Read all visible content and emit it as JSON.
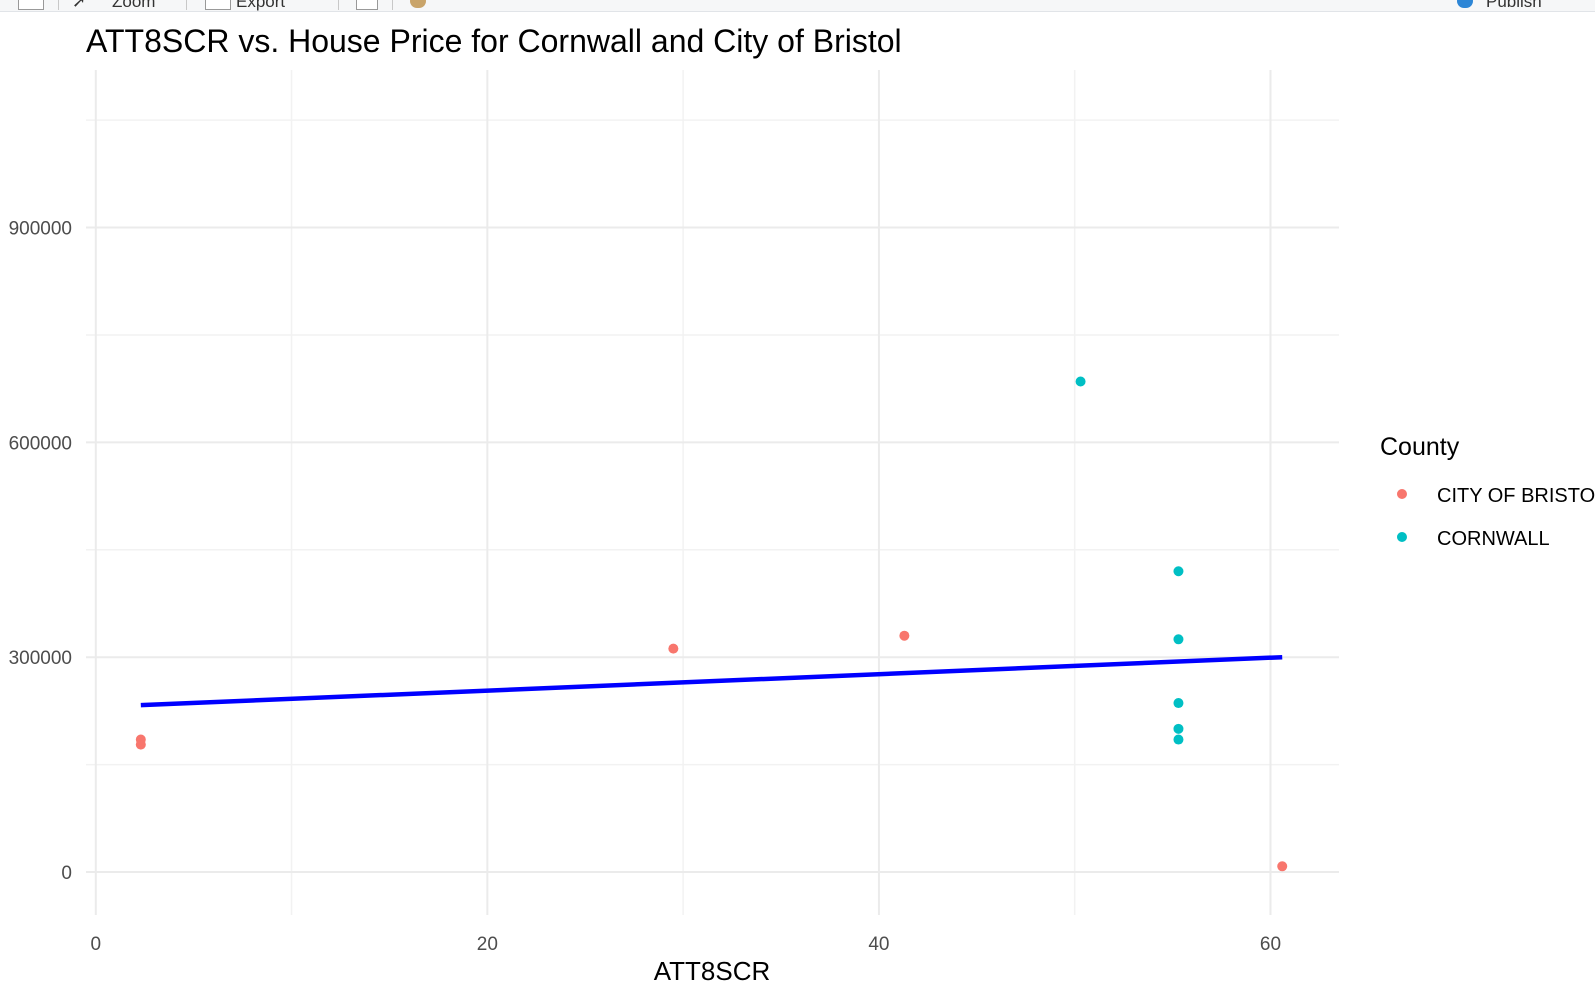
{
  "toolbar": {
    "zoom_label": "Zoom",
    "export_label": "Export",
    "publish_label": "Publish"
  },
  "chart_data": {
    "type": "scatter",
    "title": "ATT8SCR vs. House Price for Cornwall and City of Bristol",
    "xlabel": "ATT8SCR",
    "ylabel": "",
    "xlim": [
      -0.5,
      63.5
    ],
    "ylim": [
      -60000,
      1120000
    ],
    "xticks": [
      0,
      20,
      40,
      60
    ],
    "xtick_labels": [
      "0",
      "20",
      "40",
      "60"
    ],
    "yticks": [
      0,
      300000,
      600000,
      900000
    ],
    "ytick_labels": [
      "0",
      "300000",
      "600000",
      "900000"
    ],
    "grid": true,
    "legend": {
      "title": "County",
      "placement": "right",
      "entries": [
        {
          "label": "CITY OF BRISTOL",
          "color": "#F8766D"
        },
        {
          "label": "CORNWALL",
          "color": "#00BFC4"
        }
      ]
    },
    "series": [
      {
        "name": "CITY OF BRISTOL",
        "color": "#F8766D",
        "points": [
          {
            "x": 2.3,
            "y": 185000
          },
          {
            "x": 2.3,
            "y": 178000
          },
          {
            "x": 29.5,
            "y": 312000
          },
          {
            "x": 41.3,
            "y": 330000
          },
          {
            "x": 60.6,
            "y": 8000
          }
        ]
      },
      {
        "name": "CORNWALL",
        "color": "#00BFC4",
        "points": [
          {
            "x": 50.3,
            "y": 685000
          },
          {
            "x": 55.3,
            "y": 420000
          },
          {
            "x": 55.3,
            "y": 325000
          },
          {
            "x": 55.3,
            "y": 236000
          },
          {
            "x": 55.3,
            "y": 200000
          },
          {
            "x": 55.3,
            "y": 185000
          }
        ]
      }
    ],
    "trend_line": {
      "color": "#0000FF",
      "x": [
        2.3,
        60.6
      ],
      "y": [
        233000,
        300000
      ]
    }
  }
}
